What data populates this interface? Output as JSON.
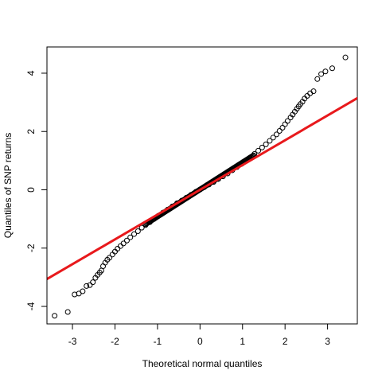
{
  "chart_data": {
    "type": "scatter",
    "subtype": "normal-qq-plot",
    "title": "",
    "xlabel": "Theoretical normal quantiles",
    "ylabel": "Quantiles of SNP returns",
    "xlim": [
      -3.6,
      3.7
    ],
    "ylim": [
      -4.6,
      4.9
    ],
    "xticks": [
      -3,
      -2,
      -1,
      0,
      1,
      2,
      3
    ],
    "yticks": [
      -4,
      -2,
      0,
      2,
      4
    ],
    "grid": false,
    "legend": "none",
    "marker": "open-circle",
    "marker_color": "#000000",
    "reference_line": {
      "slope": 0.85,
      "intercept": 0.0,
      "color": "#e8191c"
    },
    "points": [
      [
        -3.42,
        -4.32
      ],
      [
        -3.11,
        -4.19
      ],
      [
        -2.95,
        -3.59
      ],
      [
        -2.85,
        -3.56
      ],
      [
        -2.76,
        -3.48
      ],
      [
        -2.67,
        -3.3
      ],
      [
        -2.59,
        -3.27
      ],
      [
        -2.52,
        -3.17
      ],
      [
        -2.46,
        -3.02
      ],
      [
        -2.41,
        -2.92
      ],
      [
        -2.36,
        -2.84
      ],
      [
        -2.32,
        -2.77
      ],
      [
        -2.28,
        -2.62
      ],
      [
        -2.23,
        -2.5
      ],
      [
        -2.18,
        -2.4
      ],
      [
        -2.13,
        -2.33
      ],
      [
        -2.06,
        -2.22
      ],
      [
        -2.0,
        -2.12
      ],
      [
        -1.94,
        -2.02
      ],
      [
        -1.87,
        -1.93
      ],
      [
        -1.8,
        -1.84
      ],
      [
        -1.72,
        -1.74
      ],
      [
        -1.64,
        -1.63
      ],
      [
        -1.55,
        -1.52
      ],
      [
        -1.46,
        -1.42
      ],
      [
        -1.37,
        -1.3
      ],
      [
        -1.28,
        -1.21
      ],
      [
        -1.18,
        -1.11
      ],
      [
        -1.08,
        -1.0
      ],
      [
        -0.98,
        -0.89
      ],
      [
        -0.87,
        -0.78
      ],
      [
        -0.76,
        -0.68
      ],
      [
        -0.65,
        -0.57
      ],
      [
        -0.54,
        -0.46
      ],
      [
        -0.43,
        -0.37
      ],
      [
        -0.32,
        -0.27
      ],
      [
        -0.21,
        -0.17
      ],
      [
        -0.1,
        -0.07
      ],
      [
        0.0,
        0.01
      ],
      [
        0.1,
        0.09
      ],
      [
        0.21,
        0.18
      ],
      [
        0.32,
        0.27
      ],
      [
        0.43,
        0.37
      ],
      [
        0.54,
        0.46
      ],
      [
        0.65,
        0.56
      ],
      [
        0.76,
        0.67
      ],
      [
        0.87,
        0.78
      ],
      [
        0.98,
        0.89
      ],
      [
        1.08,
        1.0
      ],
      [
        1.18,
        1.11
      ],
      [
        1.28,
        1.23
      ],
      [
        1.37,
        1.34
      ],
      [
        1.46,
        1.45
      ],
      [
        1.55,
        1.56
      ],
      [
        1.64,
        1.68
      ],
      [
        1.72,
        1.79
      ],
      [
        1.8,
        1.9
      ],
      [
        1.87,
        2.02
      ],
      [
        1.94,
        2.13
      ],
      [
        2.0,
        2.25
      ],
      [
        2.06,
        2.36
      ],
      [
        2.13,
        2.48
      ],
      [
        2.18,
        2.58
      ],
      [
        2.23,
        2.68
      ],
      [
        2.28,
        2.78
      ],
      [
        2.32,
        2.86
      ],
      [
        2.36,
        2.94
      ],
      [
        2.41,
        3.02
      ],
      [
        2.46,
        3.13
      ],
      [
        2.52,
        3.22
      ],
      [
        2.59,
        3.31
      ],
      [
        2.67,
        3.38
      ],
      [
        2.76,
        3.8
      ],
      [
        2.85,
        3.97
      ],
      [
        2.95,
        4.06
      ],
      [
        3.11,
        4.17
      ],
      [
        3.42,
        4.54
      ]
    ]
  }
}
